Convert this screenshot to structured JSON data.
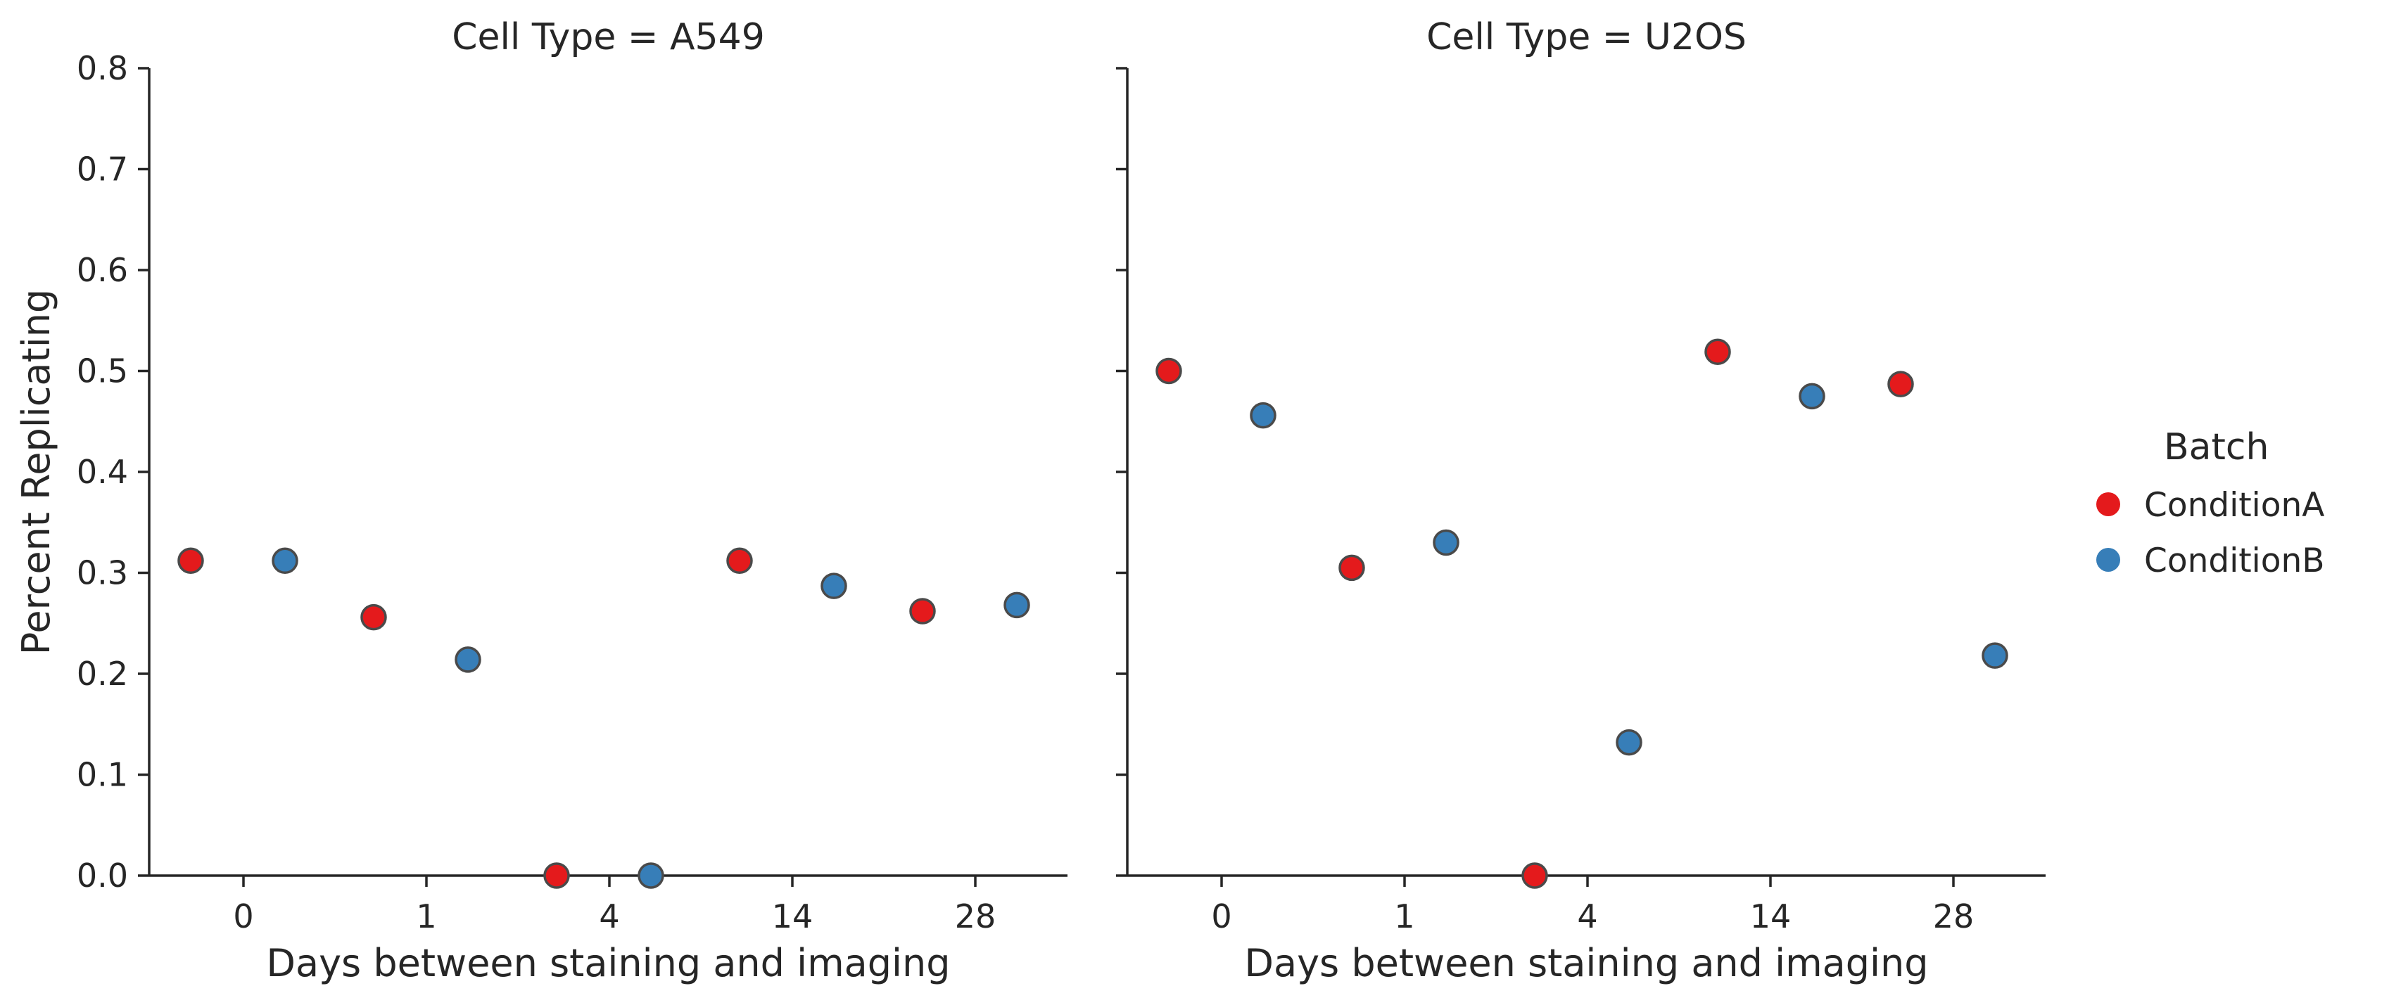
{
  "chart_data": {
    "type": "scatter",
    "xlabel": "Days between staining and imaging",
    "ylabel": "Percent Replicating",
    "ylim": [
      0,
      0.8
    ],
    "yticks": [
      "0.0",
      "0.1",
      "0.2",
      "0.3",
      "0.4",
      "0.5",
      "0.6",
      "0.7",
      "0.8"
    ],
    "categories": [
      "0",
      "1",
      "4",
      "14",
      "28"
    ],
    "legend": {
      "title": "Batch",
      "placement": "right",
      "entries": [
        {
          "name": "ConditionA",
          "color": "#e41a1c"
        },
        {
          "name": "ConditionB",
          "color": "#377eb8"
        }
      ]
    },
    "panels": [
      {
        "title": "Cell Type = A549",
        "series": [
          {
            "name": "ConditionA",
            "color": "#e41a1c",
            "values": [
              0.312,
              0.256,
              0.0,
              0.312,
              0.262
            ]
          },
          {
            "name": "ConditionB",
            "color": "#377eb8",
            "values": [
              0.312,
              0.214,
              0.0,
              0.287,
              0.268
            ]
          }
        ]
      },
      {
        "title": "Cell Type = U2OS",
        "series": [
          {
            "name": "ConditionA",
            "color": "#e41a1c",
            "values": [
              0.5,
              0.305,
              0.0,
              0.519,
              0.487
            ]
          },
          {
            "name": "ConditionB",
            "color": "#377eb8",
            "values": [
              0.456,
              0.33,
              0.132,
              0.475,
              0.218
            ]
          }
        ]
      }
    ]
  }
}
